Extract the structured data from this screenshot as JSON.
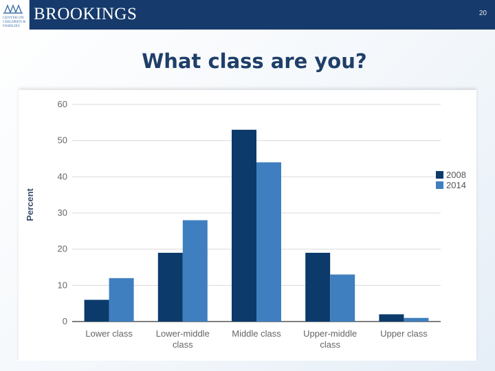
{
  "header": {
    "brand": "BROOKINGS",
    "logo_text": [
      "CENTER ON",
      "CHILDREN &",
      "FAMILIES"
    ],
    "page_number": "20"
  },
  "slide": {
    "title": "What class are you?"
  },
  "colors": {
    "header_bg": "#163a6b",
    "series_2008": "#0b3a6b",
    "series_2014": "#3f7fbf"
  },
  "chart_data": {
    "type": "bar",
    "title": "",
    "xlabel": "",
    "ylabel": "Percent",
    "ylim": [
      0,
      60
    ],
    "yticks": [
      0,
      10,
      20,
      30,
      40,
      50,
      60
    ],
    "grid": true,
    "legend_position": "right",
    "categories": [
      [
        "Lower class"
      ],
      [
        "Lower-middle",
        "class"
      ],
      [
        "Middle class"
      ],
      [
        "Upper-middle",
        "class"
      ],
      [
        "Upper class"
      ]
    ],
    "series": [
      {
        "name": "2008",
        "color": "#0b3a6b",
        "values": [
          6,
          19,
          53,
          19,
          2
        ]
      },
      {
        "name": "2014",
        "color": "#3f7fbf",
        "values": [
          12,
          28,
          44,
          13,
          1
        ]
      }
    ]
  }
}
